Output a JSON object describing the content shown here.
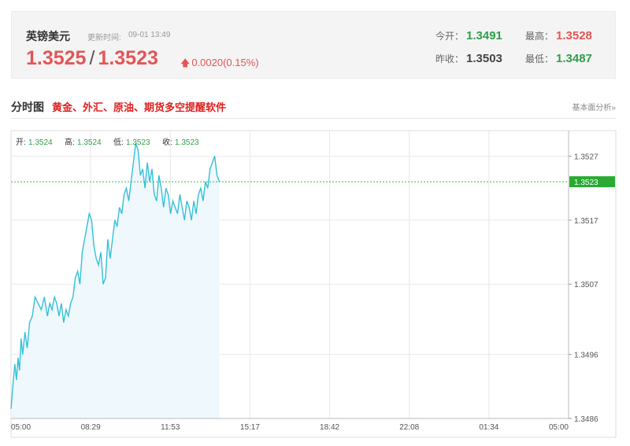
{
  "quote": {
    "name": "英镑美元",
    "time_label": "更新时间:",
    "time": "09-01 13:49",
    "bid": "1.3525",
    "separator": "/",
    "ask": "1.3523",
    "change": "0.0020(0.15%)",
    "stats": {
      "open_label": "今开：",
      "open": "1.3491",
      "high_label": "最高：",
      "high": "1.3528",
      "prev_close_label": "昨收：",
      "prev_close": "1.3503",
      "low_label": "最低：",
      "low": "1.3487"
    }
  },
  "section": {
    "title": "分时图",
    "promo": "黄金、外汇、原油、期货多空提醒软件",
    "link": "基本面分析»"
  },
  "ohlc": {
    "open_label": "开:",
    "open": "1.3524",
    "high_label": "高:",
    "high": "1.3524",
    "low_label": "低:",
    "low": "1.3523",
    "close_label": "收:",
    "close": "1.3523"
  },
  "colors": {
    "line": "#35c0d8",
    "area": "#eef8fd",
    "price_tag": "#2aaa33",
    "ref_line": "#3cb84a",
    "up": "#e45555",
    "down": "#2e9e4a"
  },
  "chart_data": {
    "type": "area",
    "x_tick_labels": [
      "05:00",
      "08:29",
      "11:53",
      "15:17",
      "18:42",
      "22:08",
      "01:34",
      "05:00"
    ],
    "y_tick_labels": [
      "1.3527",
      "1.3517",
      "1.3507",
      "1.3496",
      "1.3486"
    ],
    "y_ticks": [
      1.3527,
      1.3517,
      1.3507,
      1.3496,
      1.3486
    ],
    "ylim": [
      1.3486,
      1.3531
    ],
    "x_range_minutes": [
      0,
      1440
    ],
    "current_price": 1.3523,
    "current_price_label": "1.3523",
    "grid": true,
    "series": [
      {
        "x": [
          0,
          6,
          10,
          14,
          18,
          22,
          26,
          30,
          36,
          42,
          48,
          55,
          62,
          70,
          78,
          86,
          94,
          100,
          106,
          112,
          118,
          124,
          130,
          136,
          142,
          148,
          154,
          160,
          166,
          172,
          178,
          184,
          190,
          196,
          202,
          208,
          214,
          220,
          226,
          232,
          238,
          244,
          250,
          256,
          262,
          268,
          274,
          280,
          286,
          292,
          298,
          304,
          310,
          316,
          322,
          328,
          334,
          340,
          346,
          352,
          358,
          364,
          370,
          376,
          382,
          388,
          394,
          400,
          406,
          412,
          418,
          424,
          430,
          436,
          442,
          448,
          454,
          460,
          466,
          472,
          478,
          484,
          490,
          496,
          502,
          508,
          514,
          520,
          526,
          532,
          538
        ],
        "values": [
          1.34875,
          1.3492,
          1.34945,
          1.3492,
          1.34955,
          1.34935,
          1.34985,
          1.3496,
          1.34995,
          1.3497,
          1.3501,
          1.3502,
          1.3505,
          1.3504,
          1.3503,
          1.3505,
          1.3502,
          1.3504,
          1.3503,
          1.3505,
          1.3504,
          1.3502,
          1.3504,
          1.3501,
          1.3503,
          1.3502,
          1.3504,
          1.3505,
          1.3508,
          1.3509,
          1.3507,
          1.3512,
          1.3514,
          1.3516,
          1.3518,
          1.3517,
          1.3513,
          1.3511,
          1.351,
          1.3512,
          1.3507,
          1.3508,
          1.3514,
          1.3511,
          1.3514,
          1.3517,
          1.3516,
          1.3519,
          1.3518,
          1.3521,
          1.3522,
          1.352,
          1.3523,
          1.3526,
          1.3529,
          1.3528,
          1.3524,
          1.3525,
          1.3522,
          1.3526,
          1.3523,
          1.3525,
          1.3521,
          1.352,
          1.3524,
          1.3522,
          1.3519,
          1.3522,
          1.3521,
          1.3518,
          1.352,
          1.3519,
          1.3518,
          1.3521,
          1.3519,
          1.3517,
          1.352,
          1.3519,
          1.3517,
          1.352,
          1.3518,
          1.3521,
          1.3522,
          1.352,
          1.3523,
          1.3522,
          1.3525,
          1.3526,
          1.3527,
          1.3524,
          1.3523
        ]
      }
    ]
  }
}
